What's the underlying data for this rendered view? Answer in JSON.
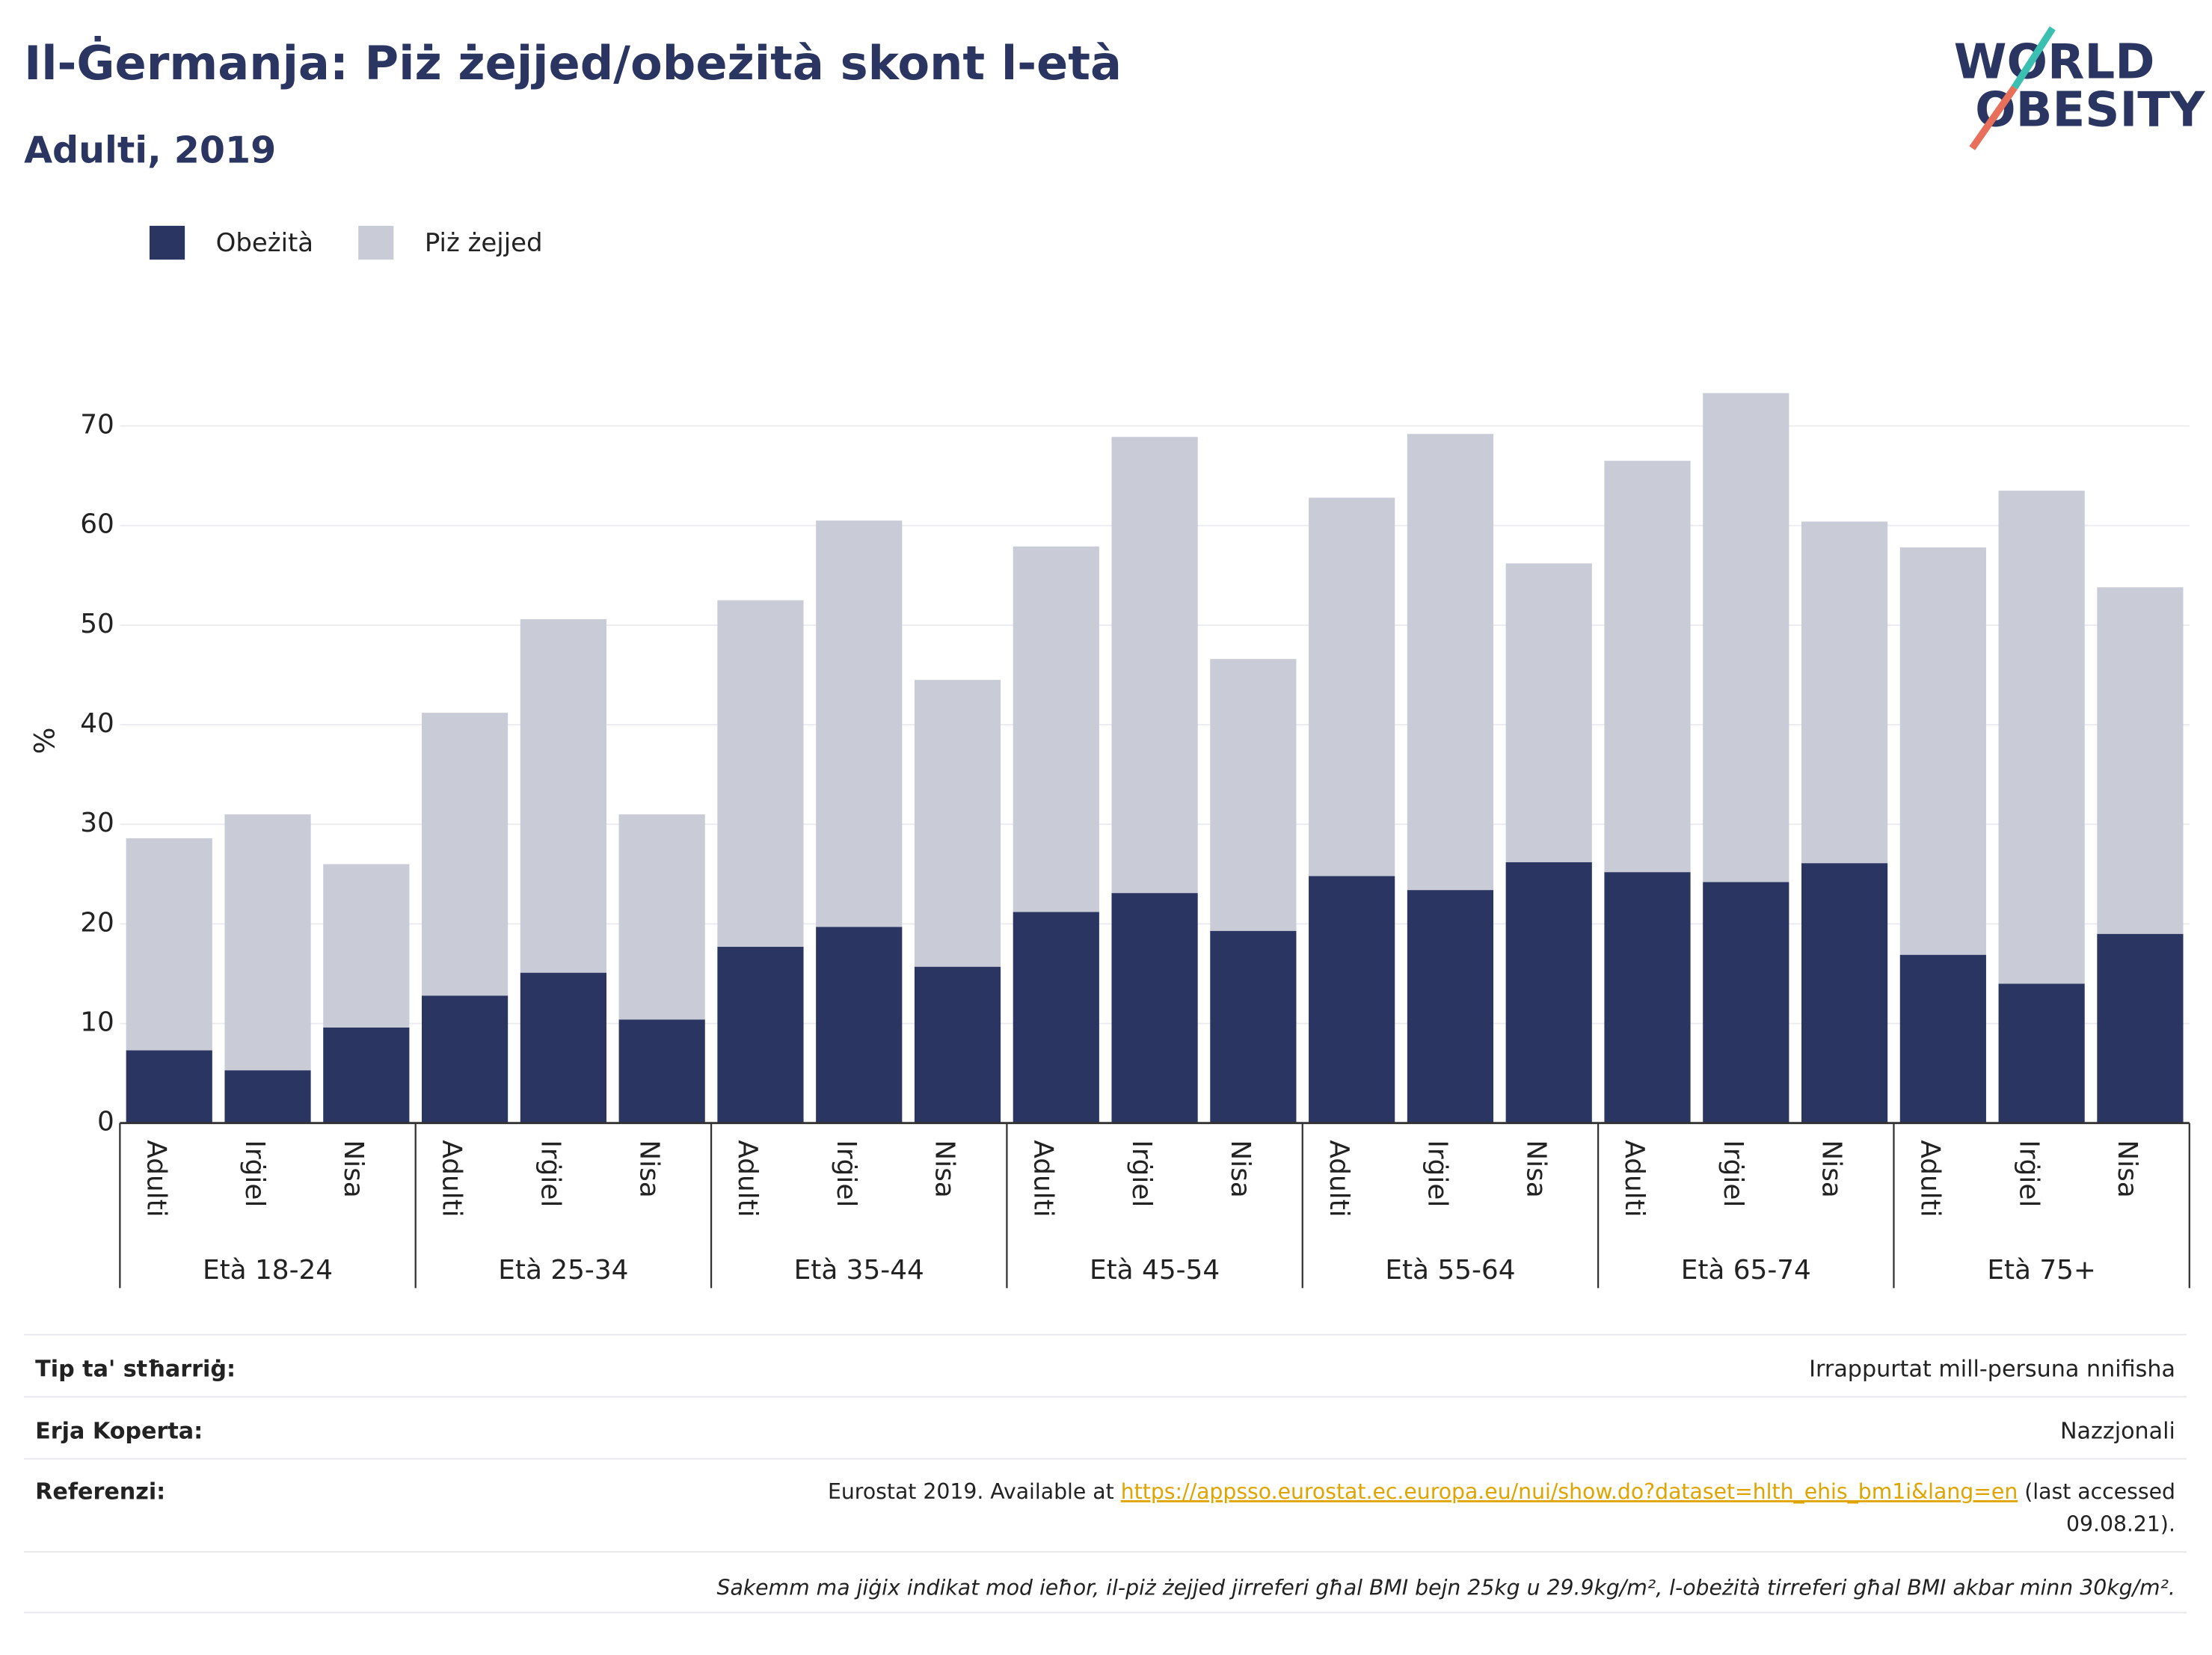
{
  "chart_data": {
    "type": "stacked_bar",
    "title": "Il-Ġermanja: Piż żejjed/obeżità skont l-età",
    "subtitle": "Adulti, 2019",
    "y_label": "%",
    "categories": [
      "Adulti",
      "Irġiel",
      "Nisa",
      "Adulti",
      "Irġiel",
      "Nisa",
      "Adulti",
      "Irġiel",
      "Nisa",
      "Adulti",
      "Irġiel",
      "Nisa",
      "Adulti",
      "Irġiel",
      "Nisa",
      "Adulti",
      "Irġiel",
      "Nisa",
      "Adulti",
      "Irġiel",
      "Nisa"
    ],
    "groups": [
      "Età 18-24",
      "Età 25-34",
      "Età 35-44",
      "Età 45-54",
      "Età 55-64",
      "Età 65-74",
      "Età 75+"
    ],
    "series": [
      {
        "name": "Obeżità",
        "color": "#2a3561",
        "values": [
          7.3,
          5.3,
          9.6,
          12.8,
          15.1,
          10.4,
          17.7,
          19.7,
          15.7,
          21.2,
          23.1,
          19.3,
          24.8,
          23.4,
          26.2,
          25.2,
          24.2,
          26.1,
          16.9,
          14.0,
          19.0
        ]
      },
      {
        "name": "Piż żejjed",
        "color": "#c9cbd6",
        "values": [
          21.3,
          25.7,
          16.4,
          28.4,
          35.5,
          20.6,
          34.8,
          40.8,
          28.8,
          36.7,
          45.8,
          27.3,
          38.0,
          45.8,
          30.0,
          41.3,
          49.1,
          34.3,
          40.9,
          49.5,
          34.8
        ]
      }
    ],
    "ylim": [
      0,
      76.5
    ],
    "yticks": [
      0,
      10,
      20,
      30,
      40,
      50,
      60,
      70
    ],
    "grid": true,
    "legend": "top-left"
  },
  "logo": {
    "line1": "WORLD",
    "line2": "OBESITY"
  },
  "footer": {
    "rows": [
      {
        "label": "Tip ta' stħarriġ:",
        "value": "Irrappurtat mill-persuna nnifisha"
      },
      {
        "label": "Erja Koperta:",
        "value": "Nazzjonali"
      }
    ],
    "reference": {
      "label": "Referenzi:",
      "text_before": "Eurostat 2019. Available at ",
      "link": "https://appsso.eurostat.ec.europa.eu/nui/show.do?dataset=hlth_ehis_bm1i&lang=en",
      "text_after": " (last accessed",
      "text_line2": "09.08.21)."
    },
    "note": "Sakemm ma jiġix indikat mod ieħor, il-piż żejjed jirreferi għal BMI bejn 25kg u 29.9kg/m², l-obeżità tirreferi għal BMI akbar minn 30kg/m²."
  }
}
